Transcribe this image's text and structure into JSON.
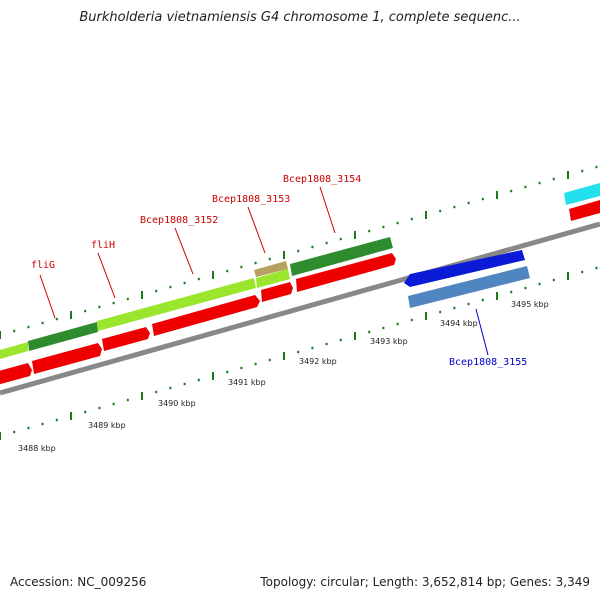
{
  "title": "Burkholderia vietnamiensis G4 chromosome 1, complete sequenc...",
  "footer": {
    "accession": "Accession: NC_009256",
    "topology": "Topology: circular; Length: 3,652,814 bp; Genes: 3,349"
  },
  "colors": {
    "forward_label": "#cc0000",
    "reverse_label": "#0000cc",
    "backbone": "#888888",
    "tick": "#1a7a1a",
    "red_gene": "#ee0000",
    "dark_green_gene": "#2e8b2e",
    "light_green_gene": "#9ae62e",
    "tan_gene": "#b8a060",
    "blue_gene": "#0a1ad6",
    "steel_gene": "#4f86c0",
    "cyan_gene": "#22e0ee"
  },
  "tick_labels": [
    "3488 kbp",
    "3489 kbp",
    "3490 kbp",
    "3491 kbp",
    "3492 kbp",
    "3493 kbp",
    "3494 kbp",
    "3495 kbp"
  ],
  "gene_labels": {
    "fliG": "fliG",
    "fliH": "fliH",
    "bcep3152": "Bcep1808_3152",
    "bcep3153": "Bcep1808_3153",
    "bcep3154": "Bcep1808_3154",
    "bcep3155": "Bcep1808_3155"
  }
}
